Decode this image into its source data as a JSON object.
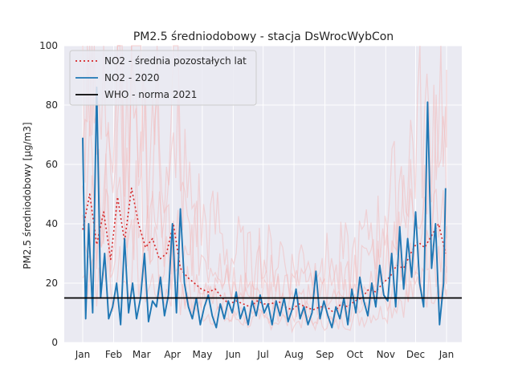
{
  "chart_data": {
    "type": "line",
    "title": "PM2.5 średniodobowy - stacja DsWrocWybCon",
    "xlabel": "",
    "ylabel": "PM2.5 średniodobowy [µg/m3]",
    "ylim": [
      0,
      100
    ],
    "yticks": [
      0,
      20,
      40,
      60,
      80,
      100
    ],
    "xticks": [
      "Jan",
      "Feb",
      "Mar",
      "Apr",
      "May",
      "Jun",
      "Jul",
      "Aug",
      "Sep",
      "Oct",
      "Nov",
      "Dec",
      "Jan"
    ],
    "grid": true,
    "legend_position": "top-left",
    "colors": {
      "background": "#eaeaf2",
      "grid": "#ffffff",
      "avg": "#d62728",
      "current": "#1f77b4",
      "who": "#000000",
      "years": "#f4b6b6"
    },
    "series": [
      {
        "name": "NO2 - średnia pozostałych lat",
        "style": "dotted",
        "color": "#d62728",
        "x": [
          "01-01",
          "01-08",
          "01-15",
          "01-22",
          "01-29",
          "02-05",
          "02-12",
          "02-19",
          "02-26",
          "03-05",
          "03-12",
          "03-19",
          "03-26",
          "04-02",
          "04-09",
          "04-16",
          "04-23",
          "04-30",
          "05-07",
          "05-14",
          "05-21",
          "05-28",
          "06-04",
          "06-11",
          "06-18",
          "06-25",
          "07-02",
          "07-09",
          "07-16",
          "07-23",
          "07-30",
          "08-06",
          "08-13",
          "08-20",
          "08-27",
          "09-03",
          "09-10",
          "09-17",
          "09-24",
          "10-01",
          "10-08",
          "10-15",
          "10-22",
          "10-29",
          "11-05",
          "11-12",
          "11-19",
          "11-26",
          "12-03",
          "12-10",
          "12-17",
          "12-24",
          "12-31"
        ],
        "y": [
          38,
          50,
          33,
          44,
          28,
          49,
          34,
          52,
          40,
          32,
          35,
          28,
          30,
          40,
          25,
          22,
          20,
          18,
          17,
          18,
          15,
          13,
          14,
          13,
          12,
          14,
          13,
          13,
          14,
          12,
          11,
          13,
          12,
          11,
          12,
          12,
          10,
          13,
          12,
          14,
          15,
          18,
          17,
          20,
          22,
          26,
          25,
          30,
          34,
          32,
          36,
          40,
          30
        ]
      },
      {
        "name": "NO2 - 2020",
        "style": "solid",
        "color": "#1f77b4",
        "x": [
          "01-01",
          "01-04",
          "01-07",
          "01-11",
          "01-15",
          "01-19",
          "01-23",
          "01-27",
          "01-31",
          "02-04",
          "02-08",
          "02-12",
          "02-16",
          "02-20",
          "02-24",
          "02-28",
          "03-04",
          "03-08",
          "03-12",
          "03-16",
          "03-20",
          "03-24",
          "03-28",
          "04-01",
          "04-05",
          "04-09",
          "04-13",
          "04-17",
          "04-21",
          "04-25",
          "04-29",
          "05-03",
          "05-07",
          "05-11",
          "05-15",
          "05-19",
          "05-23",
          "05-27",
          "05-31",
          "06-04",
          "06-08",
          "06-12",
          "06-16",
          "06-20",
          "06-24",
          "06-28",
          "07-02",
          "07-06",
          "07-10",
          "07-14",
          "07-18",
          "07-22",
          "07-26",
          "07-30",
          "08-03",
          "08-07",
          "08-11",
          "08-15",
          "08-19",
          "08-23",
          "08-27",
          "08-31",
          "09-04",
          "09-08",
          "09-12",
          "09-16",
          "09-20",
          "09-24",
          "09-28",
          "10-02",
          "10-06",
          "10-10",
          "10-14",
          "10-18",
          "10-22",
          "10-26",
          "10-30",
          "11-03",
          "11-07",
          "11-11",
          "11-15",
          "11-19",
          "11-23",
          "11-27",
          "12-01",
          "12-05",
          "12-09",
          "12-13",
          "12-17",
          "12-21",
          "12-25",
          "12-29",
          "12-31"
        ],
        "y": [
          69,
          8,
          40,
          10,
          86,
          15,
          30,
          8,
          12,
          20,
          6,
          35,
          10,
          20,
          8,
          15,
          30,
          7,
          14,
          12,
          22,
          9,
          16,
          40,
          10,
          45,
          20,
          12,
          8,
          15,
          6,
          12,
          16,
          9,
          5,
          13,
          8,
          14,
          10,
          17,
          8,
          12,
          6,
          14,
          9,
          16,
          10,
          13,
          6,
          14,
          9,
          15,
          7,
          11,
          18,
          8,
          12,
          6,
          10,
          24,
          8,
          14,
          9,
          5,
          12,
          8,
          15,
          6,
          18,
          10,
          22,
          14,
          9,
          20,
          12,
          26,
          16,
          14,
          30,
          12,
          39,
          18,
          35,
          22,
          44,
          20,
          12,
          81,
          25,
          40,
          6,
          20,
          52
        ]
      },
      {
        "name": "WHO - norma 2021",
        "style": "solid",
        "color": "#000000",
        "x": [
          "01-01",
          "12-31"
        ],
        "y": [
          15,
          15
        ]
      }
    ]
  }
}
